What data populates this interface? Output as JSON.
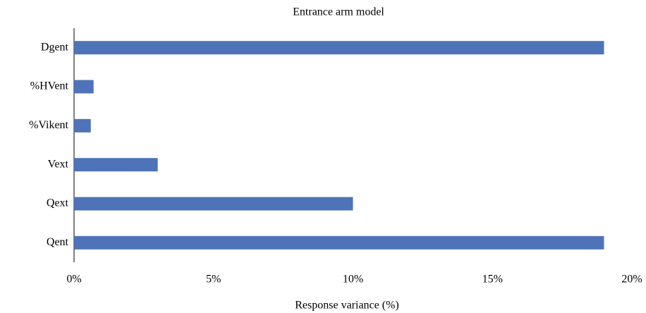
{
  "chart_data": {
    "type": "bar",
    "orientation": "horizontal",
    "title": "Entrance arm model",
    "x_label": "Response variance (%)",
    "categories": [
      "Dgent",
      "%HVent",
      "%Vikent",
      "Vext",
      "Qext",
      "Qent"
    ],
    "values": [
      19,
      0.7,
      0.6,
      3,
      10,
      19
    ],
    "color": "#4e73b8",
    "xlim": [
      0,
      20
    ],
    "xticks": [
      {
        "value": 0,
        "label": "0%"
      },
      {
        "value": 5,
        "label": "5%"
      },
      {
        "value": 10,
        "label": "10%"
      },
      {
        "value": 15,
        "label": "15%"
      },
      {
        "value": 20,
        "label": "20%"
      }
    ],
    "grid": false
  }
}
